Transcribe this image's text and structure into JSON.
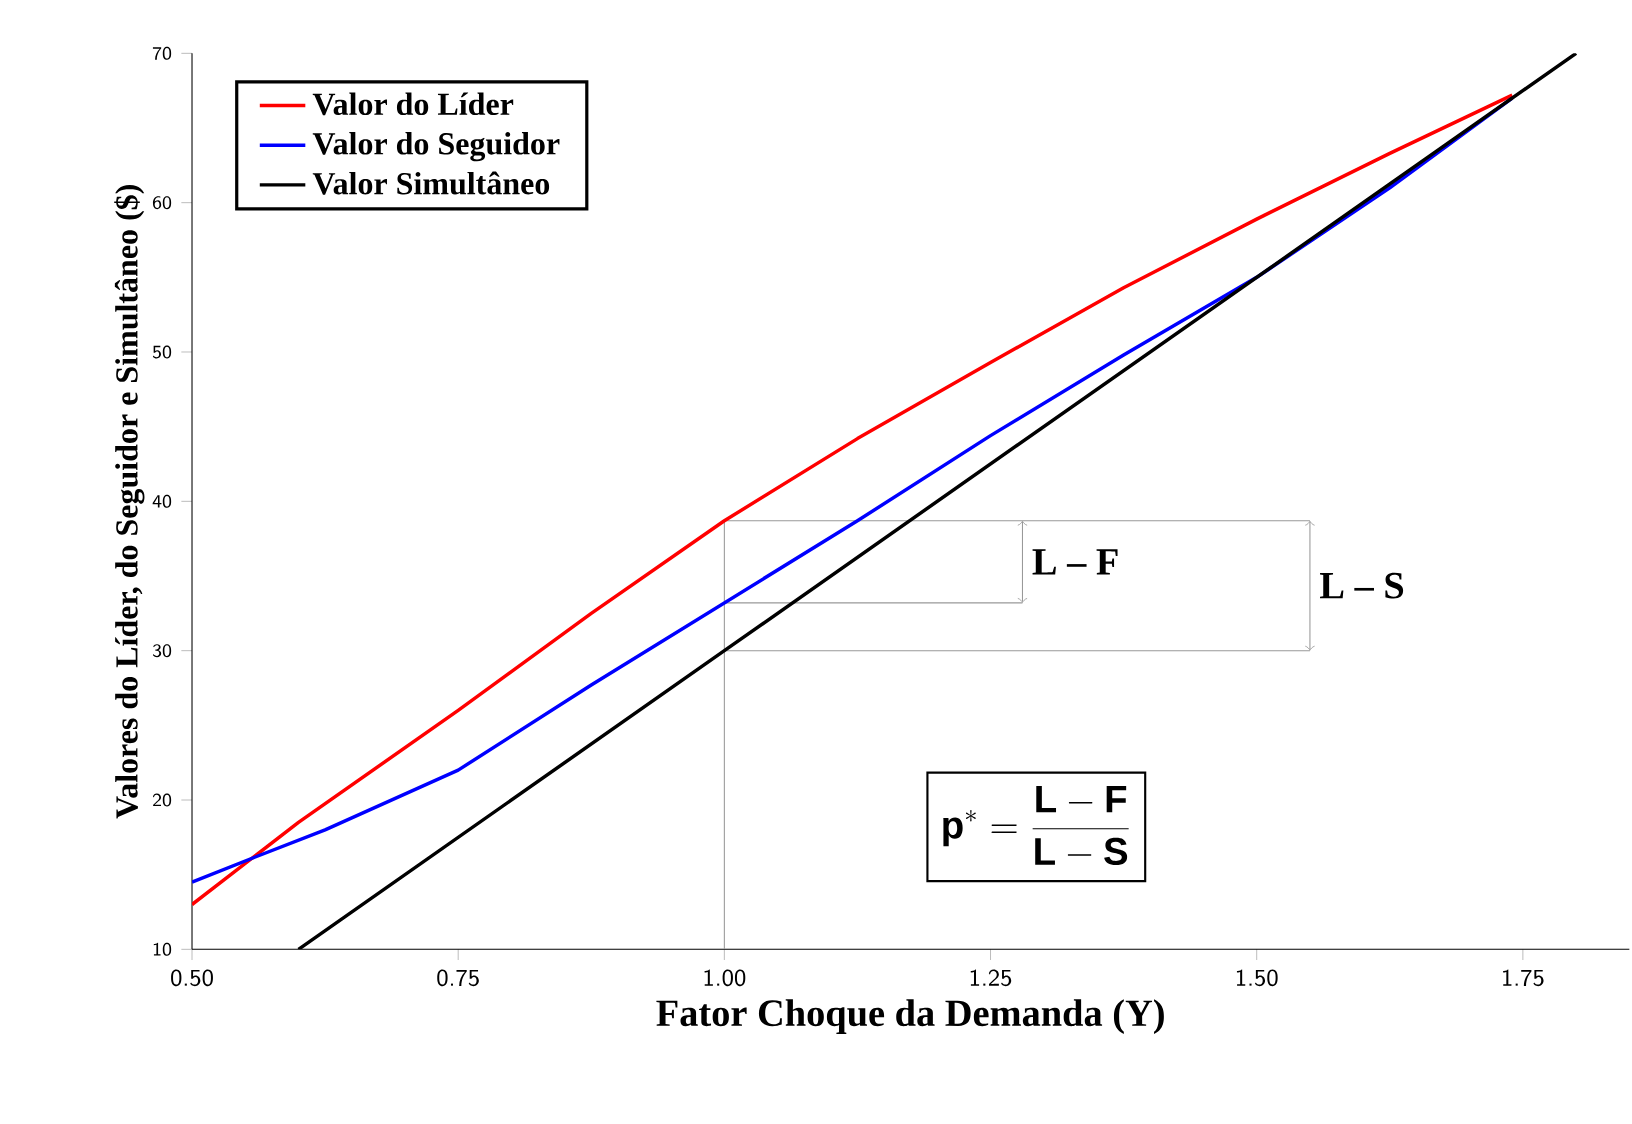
{
  "chart_data": {
    "type": "line",
    "xlabel": "Fator Choque da Demanda (Y)",
    "ylabel": "Valores do Líder, do Seguidor e Simultâneo ($)",
    "xlim": [
      0.5,
      1.85
    ],
    "ylim": [
      10,
      70
    ],
    "xticks": [
      {
        "value": 0.5,
        "label": "0.50"
      },
      {
        "value": 0.75,
        "label": "0.75"
      },
      {
        "value": 1.0,
        "label": "1.00"
      },
      {
        "value": 1.25,
        "label": "1.25"
      },
      {
        "value": 1.5,
        "label": "1.50"
      },
      {
        "value": 1.75,
        "label": "1.75"
      }
    ],
    "yticks": [
      10,
      20,
      30,
      40,
      50,
      60,
      70
    ],
    "legend": "top left",
    "grid": false,
    "marker": "none",
    "line_style": "solid",
    "series": [
      {
        "name": "Valor do Líder",
        "color": "#ff0000",
        "x": [
          0.5,
          0.6,
          0.75,
          0.875,
          1.0,
          1.125,
          1.25,
          1.375,
          1.5,
          1.625,
          1.74
        ],
        "values": [
          13,
          18.5,
          26,
          32.5,
          38.7,
          44.2,
          49.3,
          54.3,
          58.9,
          63.3,
          67.2
        ]
      },
      {
        "name": "Valor do Seguidor",
        "color": "#0000ff",
        "x": [
          0.5,
          0.56,
          0.625,
          0.75,
          0.875,
          1.0,
          1.125,
          1.25,
          1.375,
          1.5,
          1.625,
          1.74
        ],
        "values": [
          14.5,
          16.2,
          18,
          22,
          27.7,
          33.2,
          38.7,
          44.4,
          49.8,
          55,
          61,
          67
        ]
      },
      {
        "name": "Valor Simultâneo",
        "color": "#000000",
        "x": [
          0.6,
          1.0,
          1.4,
          1.8
        ],
        "values": [
          10,
          30,
          50,
          70
        ]
      }
    ],
    "ref_lines": [
      {
        "axis": "x",
        "value": 1.0,
        "color": "#999999"
      },
      {
        "axis": "x",
        "value": 1.28,
        "color": "#999999"
      },
      {
        "axis": "x",
        "value": 1.55,
        "color": "#999999"
      },
      {
        "axis": "y",
        "value": 38.7,
        "color": "#999999"
      },
      {
        "axis": "y",
        "value": 33.2,
        "color": "#999999"
      },
      {
        "axis": "y",
        "value": 30,
        "color": "#999999"
      }
    ],
    "annotations": [
      "L – F",
      "L – S",
      "\\mathbf{p^{*} = \\frac{L - F}{L - S}}"
    ]
  }
}
